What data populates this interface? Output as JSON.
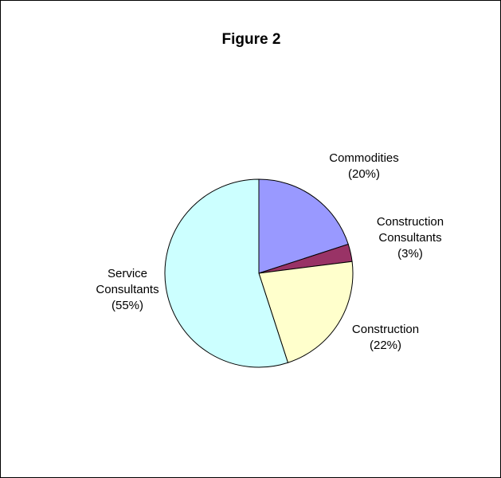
{
  "chart_data": {
    "type": "pie",
    "title": "Figure 2",
    "slices": [
      {
        "label": [
          "Commodities",
          "(20%)"
        ],
        "value": 20,
        "color": "#9999FF"
      },
      {
        "label": [
          "Construction",
          "Consultants",
          "(3%)"
        ],
        "value": 3,
        "color": "#993366"
      },
      {
        "label": [
          "Construction",
          "(22%)"
        ],
        "value": 22,
        "color": "#FFFFCC"
      },
      {
        "label": [
          "Service",
          "Consultants",
          "(55%)"
        ],
        "value": 55,
        "color": "#CCFFFF"
      }
    ],
    "start_angle_deg": 0,
    "direction": "clockwise",
    "legend": "none"
  }
}
